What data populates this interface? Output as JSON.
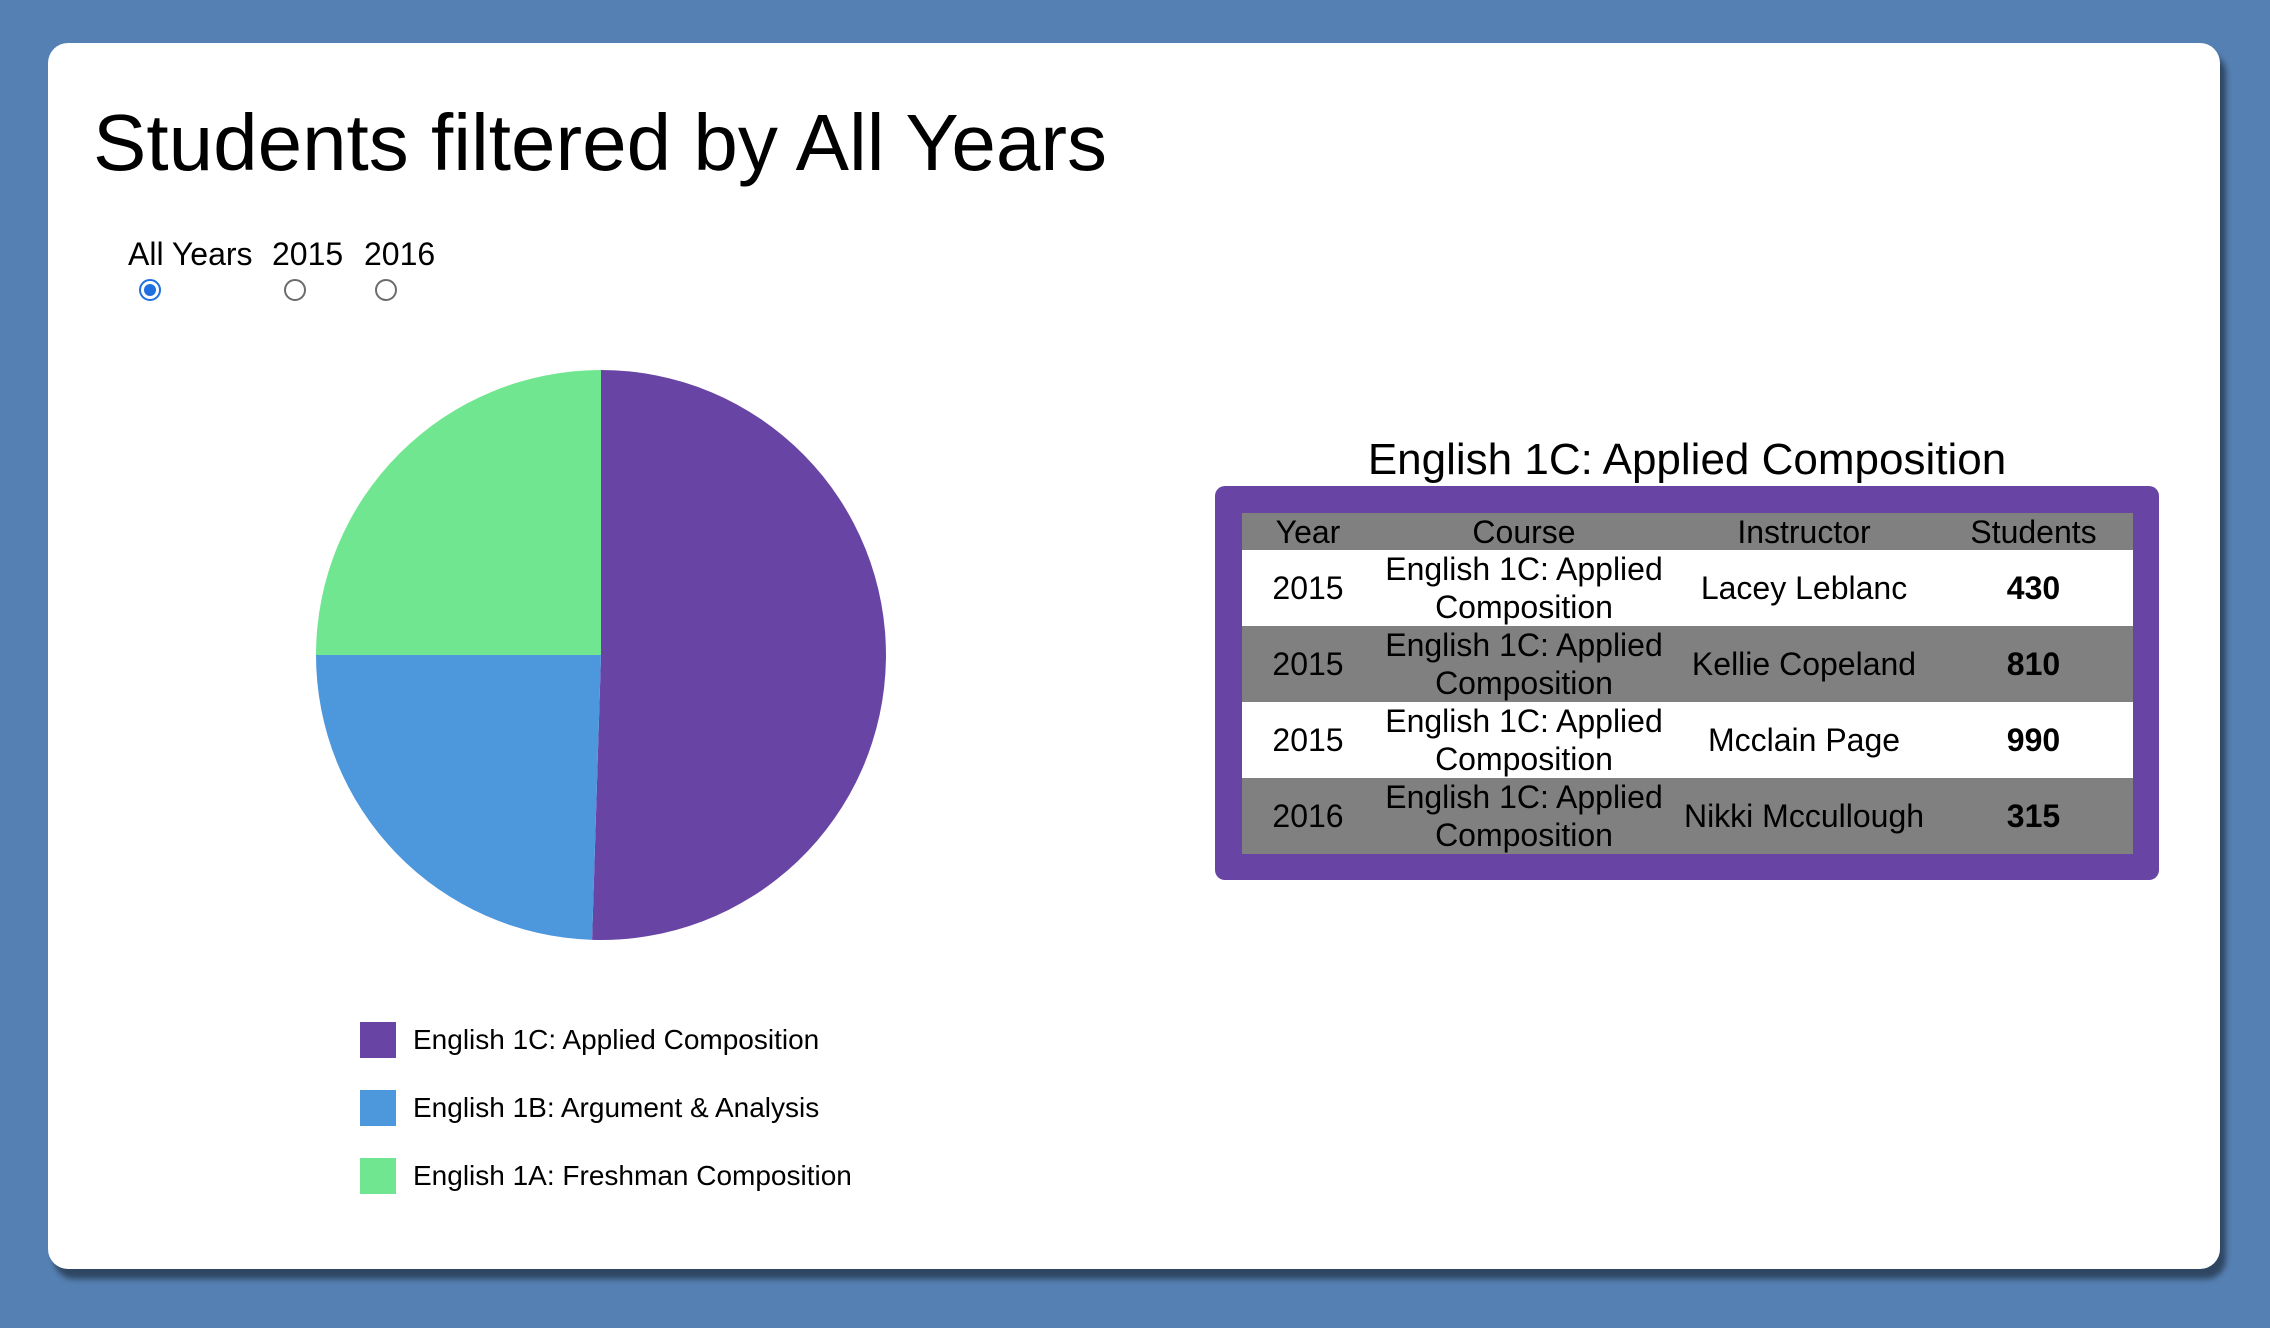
{
  "header": {
    "title": "Students filtered by All Years"
  },
  "year_filter": {
    "options": [
      {
        "label": "All Years",
        "checked": true
      },
      {
        "label": "2015",
        "checked": false
      },
      {
        "label": "2016",
        "checked": false
      }
    ]
  },
  "chart_data": {
    "type": "pie",
    "categories": [
      "English 1C: Applied Composition",
      "English 1B: Argument & Analysis",
      "English 1A: Freshman Composition"
    ],
    "values": [
      50.5,
      24.5,
      25.0
    ],
    "colors": [
      "#6845a5",
      "#4d97dd",
      "#71e690"
    ],
    "legend_position": "bottom"
  },
  "detail": {
    "title": "English 1C: Applied Composition",
    "columns": [
      "Year",
      "Course",
      "Instructor",
      "Students"
    ],
    "rows": [
      {
        "year": "2015",
        "course": "English 1C: Applied Composition",
        "instructor": "Lacey Leblanc",
        "students": "430"
      },
      {
        "year": "2015",
        "course": "English 1C: Applied Composition",
        "instructor": "Kellie Copeland",
        "students": "810"
      },
      {
        "year": "2015",
        "course": "English 1C: Applied Composition",
        "instructor": "Mcclain Page",
        "students": "990"
      },
      {
        "year": "2016",
        "course": "English 1C: Applied Composition",
        "instructor": "Nikki Mccullough",
        "students": "315"
      }
    ]
  }
}
